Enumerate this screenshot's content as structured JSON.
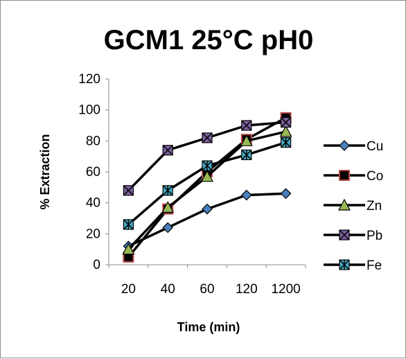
{
  "chart_data": {
    "type": "line",
    "title": "GCM1 25°C pH0",
    "xlabel": "Time (min)",
    "ylabel": "% Extraction",
    "categories": [
      "20",
      "40",
      "60",
      "120",
      "1200"
    ],
    "ylim": [
      0,
      120
    ],
    "yticks": [
      "0",
      "20",
      "40",
      "60",
      "80",
      "100",
      "120"
    ],
    "grid": false,
    "legend_position": "right",
    "series": [
      {
        "name": "Cu",
        "marker": "diamond",
        "marker_color": "#4a7ebb",
        "values": [
          12,
          24,
          36,
          45,
          46
        ]
      },
      {
        "name": "Co",
        "marker": "square",
        "marker_color": "#be4b48",
        "values": [
          5,
          36,
          60,
          81,
          95
        ]
      },
      {
        "name": "Zn",
        "marker": "triangle",
        "marker_color": "#98b954",
        "values": [
          10,
          37,
          57,
          80,
          86
        ]
      },
      {
        "name": "Pb",
        "marker": "square-x",
        "marker_color": "#7d60a0",
        "values": [
          48,
          74,
          82,
          90,
          92
        ]
      },
      {
        "name": "Fe",
        "marker": "star",
        "marker_color": "#46aac5",
        "values": [
          26,
          48,
          64,
          71,
          79
        ]
      }
    ],
    "line_color": "#000000"
  }
}
